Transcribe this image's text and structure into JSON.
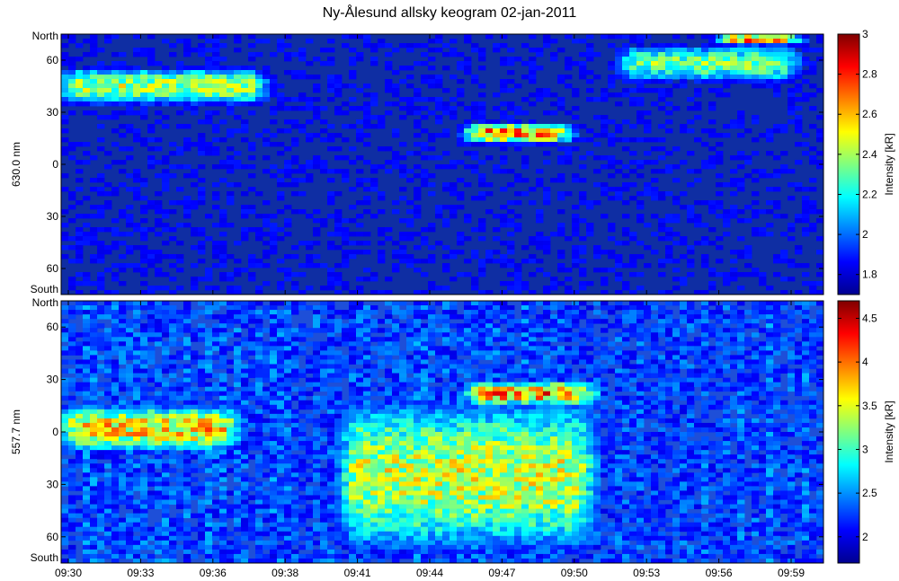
{
  "chart_data": {
    "type": "heatmap",
    "title": "Ny-Ålesund allsky keogram 02-jan-2011",
    "time_ticks": [
      "09:30",
      "09:33",
      "09:36",
      "09:38",
      "09:41",
      "09:44",
      "09:47",
      "09:50",
      "09:53",
      "09:56",
      "09:59"
    ],
    "panels": [
      {
        "ylabel": "630.0 nm",
        "y_ticks": [
          "North",
          "60",
          "30",
          "0",
          "30",
          "60",
          "South"
        ],
        "colorbar": {
          "label": "Intensity [kR]",
          "range": [
            1.7,
            3.0
          ],
          "ticks": [
            "3",
            "2.8",
            "2.6",
            "2.4",
            "2.2",
            "2",
            "1.8"
          ]
        },
        "features": [
          {
            "t_start": "09:30",
            "t_end": "09:38",
            "lat_center": 45,
            "lat_halfwidth": 12,
            "peak_kR": 2.6
          },
          {
            "t_start": "09:46",
            "t_end": "09:50",
            "lat_center": 18,
            "lat_halfwidth": 7,
            "peak_kR": 2.9
          },
          {
            "t_start": "09:52",
            "t_end": "09:59",
            "lat_center": 58,
            "lat_halfwidth": 12,
            "peak_kR": 2.5
          },
          {
            "t_start": "09:56",
            "t_end": "09:59",
            "lat_center": 72,
            "lat_halfwidth": 4,
            "peak_kR": 2.9
          }
        ]
      },
      {
        "ylabel": "557.7 nm",
        "y_ticks": [
          "North",
          "60",
          "30",
          "0",
          "30",
          "60",
          "South"
        ],
        "colorbar": {
          "label": "Intensity [kR]",
          "range": [
            1.7,
            4.7
          ],
          "ticks": [
            "4.5",
            "4",
            "3.5",
            "3",
            "2.5",
            "2"
          ]
        },
        "features": [
          {
            "t_start": "09:30",
            "t_end": "09:37",
            "lat_center": 2,
            "lat_halfwidth": 15,
            "peak_kR": 4.2
          },
          {
            "t_start": "09:41",
            "t_end": "09:51",
            "lat_center": -25,
            "lat_halfwidth": 50,
            "peak_kR": 3.9
          },
          {
            "t_start": "09:46",
            "t_end": "09:51",
            "lat_center": 22,
            "lat_halfwidth": 8,
            "peak_kR": 4.5
          }
        ]
      }
    ]
  }
}
